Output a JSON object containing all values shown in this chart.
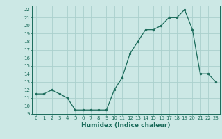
{
  "x": [
    0,
    1,
    2,
    3,
    4,
    5,
    6,
    7,
    8,
    9,
    10,
    11,
    12,
    13,
    14,
    15,
    16,
    17,
    18,
    19,
    20,
    21,
    22,
    23
  ],
  "y": [
    11.5,
    11.5,
    12.0,
    11.5,
    11.0,
    9.5,
    9.5,
    9.5,
    9.5,
    9.5,
    12.0,
    13.5,
    16.5,
    18.0,
    19.5,
    19.5,
    20.0,
    21.0,
    21.0,
    22.0,
    19.5,
    14.0,
    14.0,
    13.0
  ],
  "title": "",
  "xlabel": "Humidex (Indice chaleur)",
  "ylabel": "",
  "xlim": [
    -0.5,
    23.5
  ],
  "ylim": [
    9,
    22.5
  ],
  "yticks": [
    9,
    10,
    11,
    12,
    13,
    14,
    15,
    16,
    17,
    18,
    19,
    20,
    21,
    22
  ],
  "xticks": [
    0,
    1,
    2,
    3,
    4,
    5,
    6,
    7,
    8,
    9,
    10,
    11,
    12,
    13,
    14,
    15,
    16,
    17,
    18,
    19,
    20,
    21,
    22,
    23
  ],
  "line_color": "#1a6b5a",
  "marker_color": "#1a6b5a",
  "bg_color": "#cce8e5",
  "grid_color": "#aad0cc",
  "tick_color": "#1a6b5a",
  "label_color": "#1a6b5a",
  "spine_color": "#1a6b5a"
}
